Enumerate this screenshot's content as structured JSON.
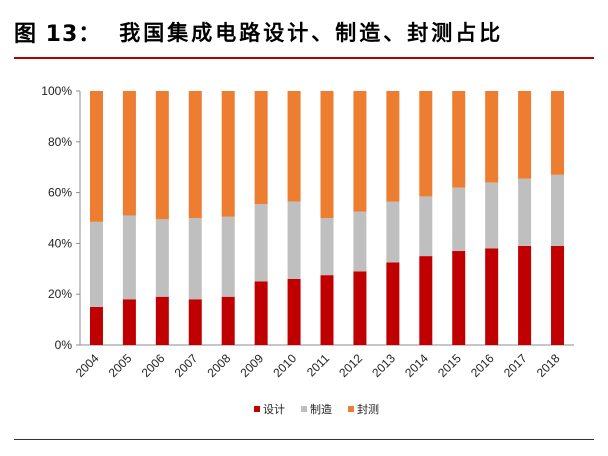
{
  "header": {
    "figure_label": "图 13：",
    "title": "我国集成电路设计、制造、封测占比"
  },
  "chart_data": {
    "type": "bar",
    "stacked": true,
    "categories": [
      "2004",
      "2005",
      "2006",
      "2007",
      "2008",
      "2009",
      "2010",
      "2011",
      "2012",
      "2013",
      "2014",
      "2015",
      "2016",
      "2017",
      "2018"
    ],
    "series": [
      {
        "name": "设计",
        "color": "#c00000",
        "values": [
          15,
          18,
          19,
          18,
          19,
          25,
          26,
          27.5,
          29,
          32.5,
          35,
          37,
          38,
          39,
          39
        ]
      },
      {
        "name": "制造",
        "color": "#bfbfbf",
        "values": [
          33.5,
          33,
          30.5,
          32,
          31.5,
          30.5,
          30.5,
          22.5,
          23.5,
          24,
          23.5,
          25,
          26,
          26.5,
          28
        ]
      },
      {
        "name": "封测",
        "color": "#ed7d31",
        "values": [
          51.5,
          49,
          50.5,
          50,
          49.5,
          44.5,
          43.5,
          50,
          47.5,
          43.5,
          41.5,
          38,
          36,
          34.5,
          33
        ]
      }
    ],
    "ylim": [
      0,
      100
    ],
    "ytick_labels": [
      "0%",
      "20%",
      "40%",
      "60%",
      "80%",
      "100%"
    ],
    "legend_position": "bottom"
  }
}
